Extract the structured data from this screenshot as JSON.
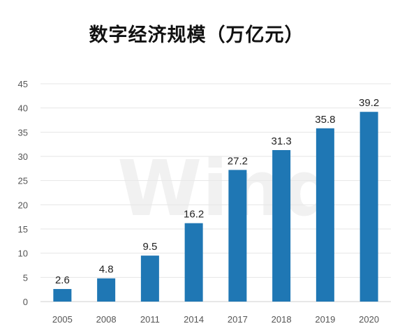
{
  "chart_data": {
    "type": "bar",
    "title": "数字经济规模（万亿元）",
    "categories": [
      "2005",
      "2008",
      "2011",
      "2014",
      "2017",
      "2018",
      "2019",
      "2020"
    ],
    "values": [
      2.6,
      4.8,
      9.5,
      16.2,
      27.2,
      31.3,
      35.8,
      39.2
    ],
    "ylim": [
      0,
      45
    ],
    "yticks": [
      0,
      5,
      10,
      15,
      20,
      25,
      30,
      35,
      40,
      45
    ],
    "xlabel": "",
    "ylabel": "",
    "grid": true,
    "legend": "none",
    "bar_color": "#1f77b4",
    "watermark": "Wind"
  }
}
